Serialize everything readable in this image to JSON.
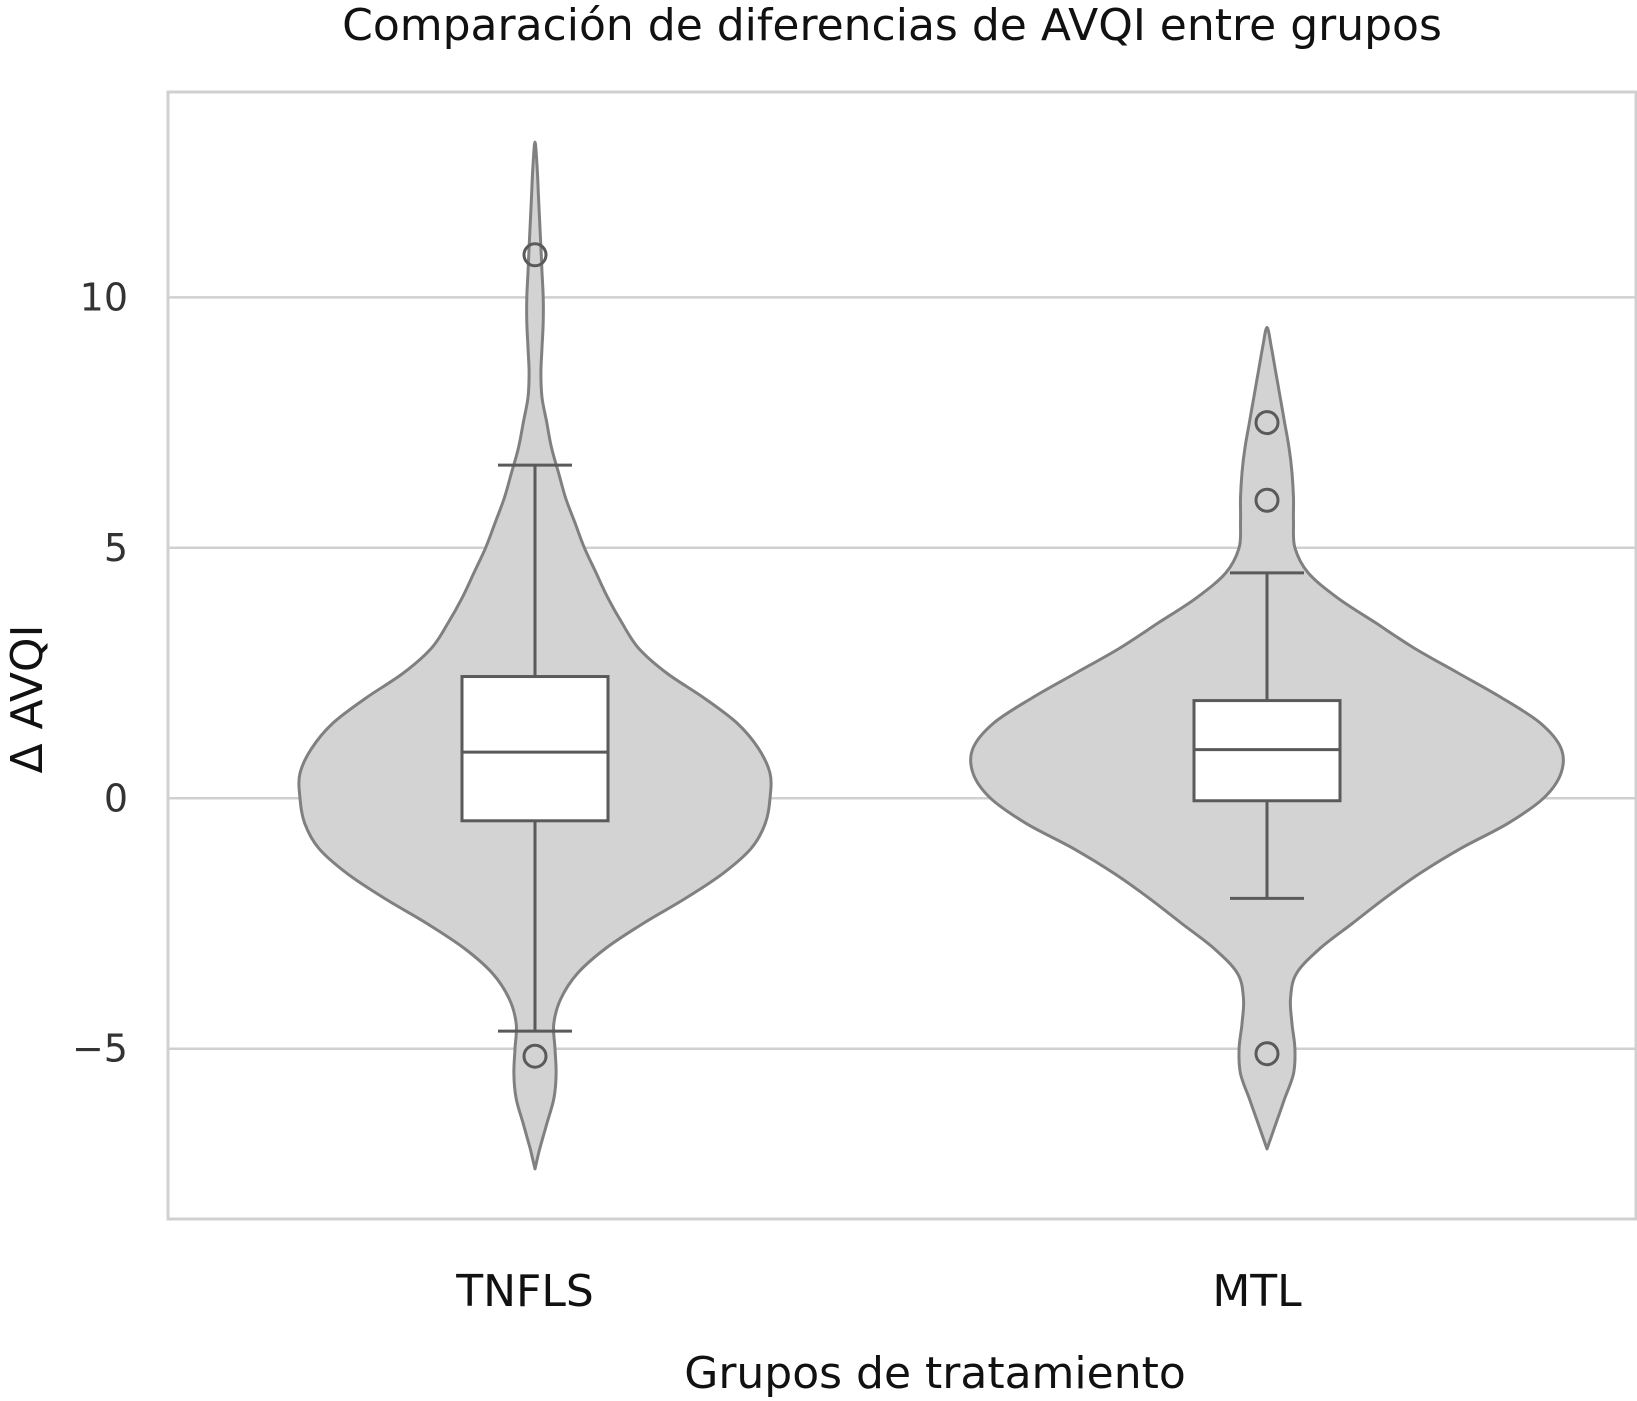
{
  "chart_data": {
    "type": "violin",
    "title": "Comparación de diferencias de AVQI entre grupos",
    "xlabel": "Grupos de tratamiento",
    "ylabel": "Δ AVQI",
    "categories": [
      "TNFLS",
      "MTL"
    ],
    "yticks": [
      -5,
      0,
      5,
      10
    ],
    "ylim": [
      -8.4,
      14.1
    ],
    "grid": "horizontal",
    "colors": {
      "violin_fill": "#d3d3d3",
      "violin_edge": "#808080",
      "box_fill": "#ffffff",
      "box_edge": "#5a5a5a",
      "grid": "#d0d0d0",
      "frame": "#d0d0d0"
    },
    "groups": [
      {
        "name": "TNFLS",
        "box": {
          "q1": -0.45,
          "median": 0.92,
          "q3": 2.43,
          "whisker_low": -4.65,
          "whisker_high": 6.65
        },
        "outliers": [
          10.85,
          -5.15
        ],
        "density": {
          "y": [
            -7.4,
            -7.0,
            -6.5,
            -6.0,
            -5.5,
            -5.0,
            -4.5,
            -4.0,
            -3.5,
            -3.0,
            -2.5,
            -2.0,
            -1.5,
            -1.0,
            -0.5,
            0.0,
            0.5,
            1.0,
            1.5,
            2.0,
            2.5,
            3.0,
            3.5,
            4.0,
            4.5,
            5.0,
            5.5,
            6.0,
            6.5,
            7.0,
            7.5,
            8.0,
            8.5,
            9.0,
            9.5,
            10.0,
            10.5,
            11.0,
            11.5,
            12.0,
            12.5,
            13.1
          ],
          "width": [
            0.0,
            0.02,
            0.05,
            0.08,
            0.09,
            0.085,
            0.08,
            0.11,
            0.18,
            0.3,
            0.46,
            0.64,
            0.8,
            0.92,
            0.98,
            1.0,
            1.0,
            0.95,
            0.86,
            0.72,
            0.56,
            0.44,
            0.37,
            0.31,
            0.26,
            0.21,
            0.17,
            0.13,
            0.1,
            0.07,
            0.05,
            0.03,
            0.025,
            0.03,
            0.035,
            0.035,
            0.03,
            0.025,
            0.02,
            0.015,
            0.01,
            0.0
          ]
        }
      },
      {
        "name": "MTL",
        "box": {
          "q1": -0.05,
          "median": 0.97,
          "q3": 1.95,
          "whisker_low": -2.0,
          "whisker_high": 4.5
        },
        "outliers": [
          7.5,
          5.95,
          -5.1
        ],
        "density": {
          "y": [
            -7.0,
            -6.5,
            -6.0,
            -5.5,
            -5.0,
            -4.5,
            -4.0,
            -3.5,
            -3.0,
            -2.5,
            -2.0,
            -1.5,
            -1.0,
            -0.5,
            0.0,
            0.5,
            1.0,
            1.5,
            2.0,
            2.5,
            3.0,
            3.5,
            4.0,
            4.5,
            5.0,
            5.5,
            6.0,
            6.5,
            7.0,
            7.5,
            8.0,
            8.5,
            9.0,
            9.4
          ],
          "width": [
            0.0,
            0.03,
            0.06,
            0.09,
            0.095,
            0.085,
            0.08,
            0.1,
            0.18,
            0.29,
            0.4,
            0.52,
            0.66,
            0.82,
            0.94,
            1.0,
            1.0,
            0.93,
            0.8,
            0.65,
            0.5,
            0.37,
            0.24,
            0.14,
            0.095,
            0.09,
            0.09,
            0.085,
            0.075,
            0.06,
            0.045,
            0.03,
            0.015,
            0.0
          ]
        }
      }
    ]
  }
}
